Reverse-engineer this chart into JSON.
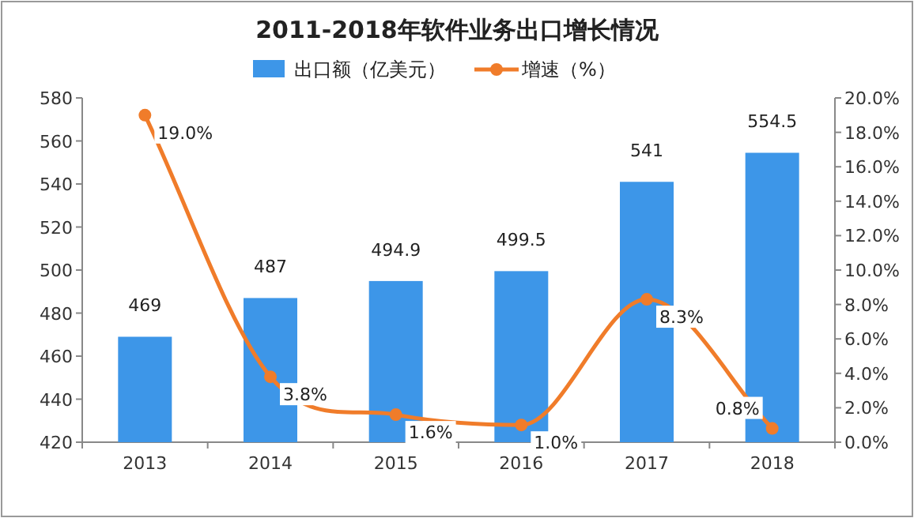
{
  "chart_data": {
    "type": "bar",
    "title": "2011-2018年软件业务出口增长情况",
    "categories": [
      "2013",
      "2014",
      "2015",
      "2016",
      "2017",
      "2018"
    ],
    "series": [
      {
        "name": "出口额（亿美元）",
        "color": "#3d96e8",
        "values": [
          469,
          487,
          494.9,
          499.5,
          541,
          554.5
        ],
        "value_labels": [
          "469",
          "487",
          "494.9",
          "499.5",
          "541",
          "554.5"
        ]
      },
      {
        "name": "增速（%）",
        "type": "line",
        "axis": "y2",
        "color": "#f07c2a",
        "values": [
          19.0,
          3.8,
          1.6,
          1.0,
          8.3,
          0.8
        ],
        "value_labels": [
          "19.0%",
          "3.8%",
          "1.6%",
          "1.0%",
          "8.3%",
          "0.8%"
        ]
      }
    ],
    "ylim": [
      420,
      580
    ],
    "yticks": [
      420,
      440,
      460,
      480,
      500,
      520,
      540,
      560,
      580
    ],
    "y2lim": [
      0,
      20
    ],
    "y2ticks": [
      {
        "value": 0,
        "label": "0.0%"
      },
      {
        "value": 2,
        "label": "2.0%"
      },
      {
        "value": 4,
        "label": "4.0%"
      },
      {
        "value": 6,
        "label": "6.0%"
      },
      {
        "value": 8,
        "label": "8.0%"
      },
      {
        "value": 10,
        "label": "10.0%"
      },
      {
        "value": 12,
        "label": "12.0%"
      },
      {
        "value": 14,
        "label": "14.0%"
      },
      {
        "value": 16,
        "label": "16.0%"
      },
      {
        "value": 18,
        "label": "18.0%"
      },
      {
        "value": 20,
        "label": "20.0%"
      }
    ],
    "legend": "top",
    "marker": "circle",
    "line_style": "solid"
  }
}
